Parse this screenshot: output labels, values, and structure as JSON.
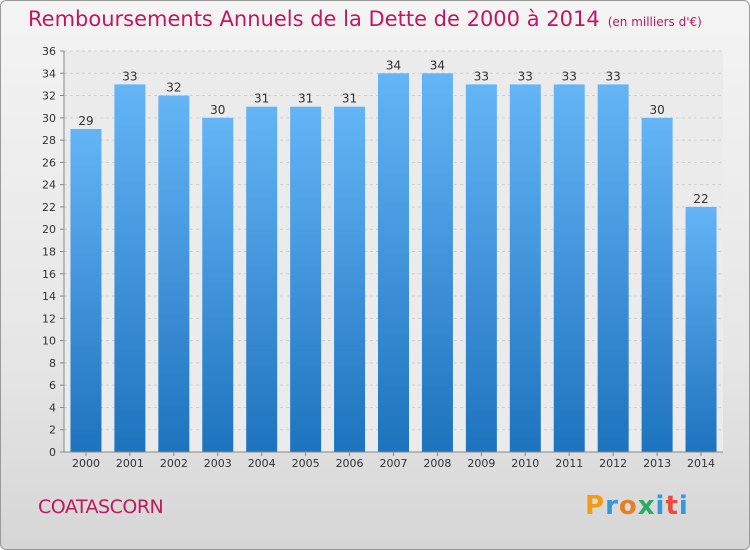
{
  "header": {
    "title": "Remboursements Annuels de la Dette de 2000 à 2014",
    "unit": "(en milliers d'€)"
  },
  "footer": {
    "commune": "COATASCORN",
    "logo_text": "Proxiti"
  },
  "colors": {
    "title": "#c2185b",
    "bar_top": "#64b5f6",
    "bar_bottom": "#1e73be",
    "logo_letters": [
      "#f39c12",
      "#3498db",
      "#e67e22",
      "#27ae60",
      "#3498db",
      "#e74c3c",
      "#3498db"
    ]
  },
  "chart_data": {
    "type": "bar",
    "title": "Remboursements Annuels de la Dette de 2000 à 2014",
    "subtitle": "(en milliers d'€)",
    "categories": [
      "2000",
      "2001",
      "2002",
      "2003",
      "2004",
      "2005",
      "2006",
      "2007",
      "2008",
      "2009",
      "2010",
      "2011",
      "2012",
      "2013",
      "2014"
    ],
    "values": [
      29,
      33,
      32,
      30,
      31,
      31,
      31,
      34,
      34,
      33,
      33,
      33,
      33,
      30,
      22
    ],
    "ylim": [
      0,
      36
    ],
    "yticks": [
      0,
      2,
      4,
      6,
      8,
      10,
      12,
      14,
      16,
      18,
      20,
      22,
      24,
      26,
      28,
      30,
      32,
      34,
      36
    ],
    "grid": true,
    "data_labels": true
  }
}
